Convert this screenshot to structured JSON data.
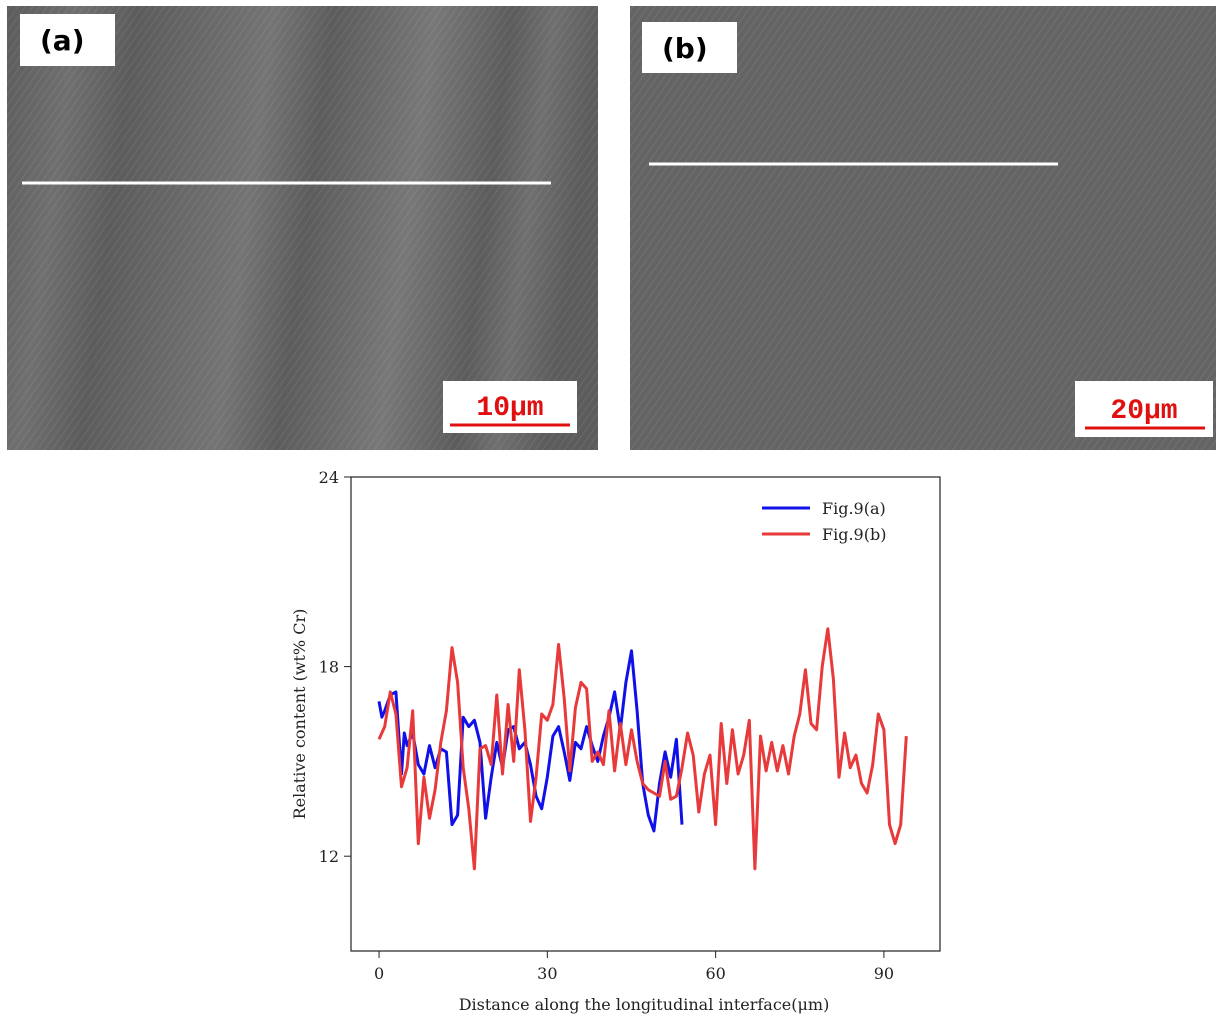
{
  "panels": [
    {
      "label": "(a)",
      "scale_bar": "10μm"
    },
    {
      "label": "(b)",
      "scale_bar": "20μm"
    }
  ],
  "chart_data": {
    "type": "line",
    "xlabel": "Distance along the longitudinal interface(μm)",
    "ylabel": "Relative content (wt% Cr)",
    "xlim": [
      -5,
      100
    ],
    "xticks": [
      0,
      30,
      60,
      90
    ],
    "ylim": [
      9,
      24
    ],
    "yticks": [
      12,
      18,
      24
    ],
    "legend": "upper right",
    "series": [
      {
        "name": "Fig.9(a)",
        "color": "#1010e8",
        "x": [
          0,
          0.5,
          1,
          2,
          3,
          4,
          4.5,
          5,
          6,
          7,
          8,
          9,
          10,
          11,
          12,
          13,
          14,
          15,
          16,
          17,
          18,
          19,
          20,
          21,
          22,
          23,
          24,
          25,
          26,
          27,
          28,
          29,
          30,
          31,
          32,
          33,
          34,
          35,
          36,
          37,
          38,
          39,
          40,
          41,
          42,
          43,
          44,
          45,
          46,
          47,
          48,
          49,
          50,
          51,
          52,
          53,
          54
        ],
        "values": [
          16.9,
          16.4,
          16.6,
          17.1,
          17.2,
          14.6,
          15.9,
          15.5,
          15.9,
          14.9,
          14.6,
          15.5,
          14.8,
          15.4,
          15.3,
          13,
          13.3,
          16.4,
          16.1,
          16.3,
          15.6,
          13.2,
          14.5,
          15.6,
          14.8,
          16,
          16.1,
          15.4,
          15.6,
          14.9,
          13.9,
          13.5,
          14.5,
          15.8,
          16.1,
          15.3,
          14.4,
          15.6,
          15.4,
          16.1,
          15.5,
          15,
          15.8,
          16.4,
          17.2,
          16,
          17.5,
          18.5,
          16.6,
          14.3,
          13.3,
          12.8,
          14.3,
          15.3,
          14.5,
          15.7,
          13
        ]
      },
      {
        "name": "Fig.9(b)",
        "color": "#e83a3a",
        "x": [
          0,
          1,
          2,
          3,
          4,
          5,
          6,
          7,
          8,
          9,
          10,
          11,
          12,
          13,
          14,
          15,
          16,
          17,
          18,
          19,
          20,
          21,
          22,
          23,
          24,
          25,
          26,
          27,
          28,
          29,
          30,
          31,
          32,
          33,
          34,
          35,
          36,
          37,
          38,
          39,
          40,
          41,
          42,
          43,
          44,
          45,
          46,
          47,
          48,
          49,
          50,
          51,
          52,
          53,
          54,
          55,
          56,
          57,
          58,
          59,
          60,
          61,
          62,
          63,
          64,
          65,
          66,
          67,
          68,
          69,
          70,
          71,
          72,
          73,
          74,
          75,
          76,
          77,
          78,
          79,
          80,
          81,
          82,
          83,
          84,
          85,
          86,
          87,
          88,
          89,
          90,
          91,
          92,
          93,
          94
        ],
        "values": [
          15.7,
          16.1,
          17.2,
          16.5,
          14.2,
          14.8,
          16.6,
          12.4,
          14.5,
          13.2,
          14.1,
          15.6,
          16.6,
          18.6,
          17.5,
          14.8,
          13.5,
          11.6,
          15.4,
          15.5,
          14.9,
          17.1,
          14.6,
          16.8,
          15,
          17.9,
          16,
          13.1,
          14.5,
          16.5,
          16.3,
          16.8,
          18.7,
          17,
          14.7,
          16.7,
          17.5,
          17.3,
          15,
          15.3,
          14.9,
          16.6,
          14.7,
          16.2,
          14.9,
          16,
          15,
          14.3,
          14.1,
          14,
          13.9,
          15,
          13.8,
          13.9,
          14.8,
          15.9,
          15.2,
          13.4,
          14.6,
          15.2,
          13,
          16.2,
          14.3,
          16,
          14.6,
          15.2,
          16.3,
          11.6,
          15.8,
          14.7,
          15.6,
          14.7,
          15.5,
          14.6,
          15.8,
          16.5,
          17.9,
          16.2,
          16,
          18,
          19.2,
          17.6,
          14.5,
          15.9,
          14.8,
          15.2,
          14.3,
          14,
          14.9,
          16.5,
          16,
          13,
          12.4,
          13,
          15.8
        ]
      }
    ]
  }
}
